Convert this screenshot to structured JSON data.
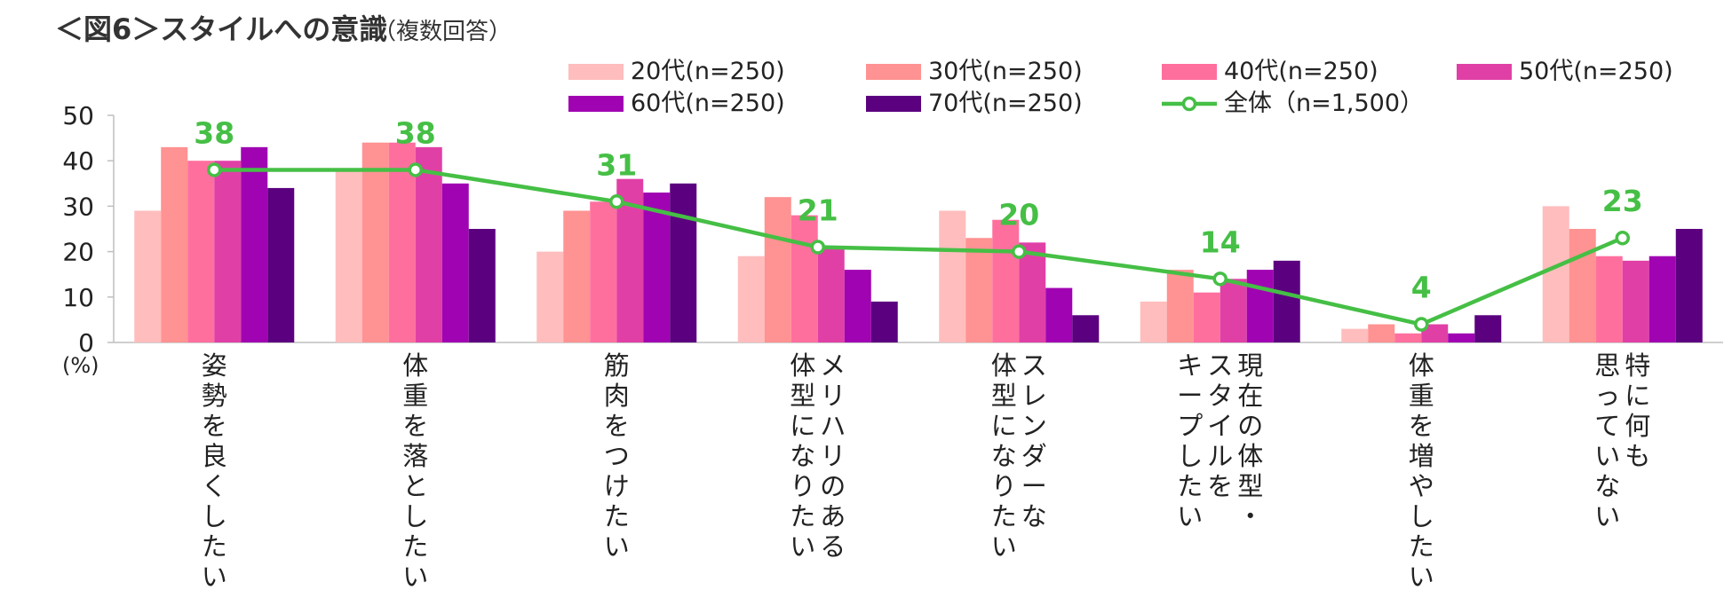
{
  "chart_data": {
    "type": "bar",
    "title": "＜図6＞スタイルへの意識",
    "subtitle": "（複数回答）",
    "y_unit_label": "(%)",
    "ylim": [
      0,
      50
    ],
    "yticks": [
      0,
      10,
      20,
      30,
      40,
      50
    ],
    "categories": [
      [
        "姿勢を良くしたい"
      ],
      [
        "体重を落としたい"
      ],
      [
        "筋肉をつけたい"
      ],
      [
        "メリハリのある",
        "体型になりたい"
      ],
      [
        "スレンダーな",
        "体型になりたい"
      ],
      [
        "現在の体型・",
        "スタイルを",
        "キープしたい"
      ],
      [
        "体重を増やしたい"
      ],
      [
        "特に何も",
        "思っていない"
      ]
    ],
    "series": [
      {
        "name": "20代(n=250)",
        "color": "#FFBDBD",
        "values": [
          29,
          38,
          20,
          19,
          29,
          9,
          3,
          30
        ]
      },
      {
        "name": "30代(n=250)",
        "color": "#FF9292",
        "values": [
          43,
          44,
          29,
          32,
          23,
          16,
          4,
          25
        ]
      },
      {
        "name": "40代(n=250)",
        "color": "#FF6F9E",
        "values": [
          40,
          44,
          31,
          28,
          27,
          11,
          2,
          19
        ]
      },
      {
        "name": "50代(n=250)",
        "color": "#E040A6",
        "values": [
          40,
          43,
          36,
          21,
          22,
          14,
          4,
          18
        ]
      },
      {
        "name": "60代(n=250)",
        "color": "#A004B2",
        "values": [
          43,
          35,
          33,
          16,
          12,
          16,
          2,
          19
        ]
      },
      {
        "name": "70代(n=250)",
        "color": "#5B007F",
        "values": [
          34,
          25,
          35,
          9,
          6,
          18,
          6,
          25
        ]
      }
    ],
    "line_series": {
      "name": "全体（n=1,500）",
      "color": "#45BF45",
      "values": [
        38,
        38,
        31,
        21,
        20,
        14,
        4,
        23
      ]
    }
  }
}
